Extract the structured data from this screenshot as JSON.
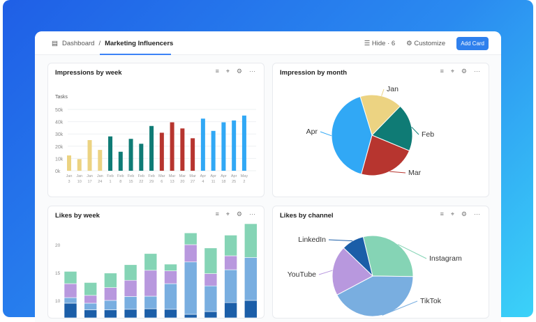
{
  "header": {
    "breadcrumb_root": "Dashboard",
    "breadcrumb_sep": "/",
    "breadcrumb_current": "Marketing Influencers",
    "hide_label": "Hide · 6",
    "customize_label": "Customize",
    "add_card_label": "Add Card"
  },
  "colors": {
    "accent": "#2f80ed",
    "jan": "#ecd382",
    "feb": "#0f7b75",
    "mar": "#b7352f",
    "apr": "#31a8f5",
    "linkedin": "#1b5ea8",
    "instagram": "#85d4b5",
    "tiktok": "#79aee0",
    "youtube": "#b898de"
  },
  "panels": {
    "impressions_week": "Impressions by week",
    "impression_month": "Impression by month",
    "likes_week": "Likes by week",
    "likes_channel": "Likes by channel"
  },
  "chart_data": [
    {
      "type": "bar",
      "title": "Impressions by week",
      "ylabel": "Tasks",
      "ylim": [
        0,
        50000
      ],
      "yticks": [
        "0k",
        "10k",
        "20k",
        "30k",
        "40k",
        "50k"
      ],
      "categories": [
        [
          "Jan",
          "3"
        ],
        [
          "Jan",
          "10"
        ],
        [
          "Jan",
          "17"
        ],
        [
          "Jan",
          "24"
        ],
        [
          "Feb",
          "1"
        ],
        [
          "Feb",
          "8"
        ],
        [
          "Feb",
          "15"
        ],
        [
          "Feb",
          "22"
        ],
        [
          "Feb",
          "29"
        ],
        [
          "Mar",
          "6"
        ],
        [
          "Mar",
          "13"
        ],
        [
          "Mar",
          "20"
        ],
        [
          "Mar",
          "27"
        ],
        [
          "Apr",
          "4"
        ],
        [
          "Apr",
          "11"
        ],
        [
          "Apr",
          "18"
        ],
        [
          "Apr",
          "25"
        ],
        [
          "May",
          "2"
        ]
      ],
      "values": [
        12500,
        9500,
        25000,
        17000,
        28000,
        15500,
        26000,
        22000,
        36500,
        31000,
        39500,
        34500,
        26500,
        42500,
        32500,
        39500,
        41000,
        45000
      ],
      "month_colors": [
        "jan",
        "jan",
        "jan",
        "jan",
        "feb",
        "feb",
        "feb",
        "feb",
        "feb",
        "mar",
        "mar",
        "mar",
        "mar",
        "apr",
        "apr",
        "apr",
        "apr",
        "apr"
      ],
      "grid": true
    },
    {
      "type": "pie",
      "title": "Impression by month",
      "labels": [
        "Jan",
        "Feb",
        "Mar",
        "Apr"
      ],
      "values": [
        17,
        19,
        23,
        41
      ]
    },
    {
      "type": "bar",
      "stacked": true,
      "title": "Likes by week",
      "yticks": [
        "10",
        "15",
        "20"
      ],
      "series": [
        {
          "color": "linkedin",
          "values": [
            9.5,
            8.3,
            8.3,
            8.4,
            8.5,
            8.4,
            7.5,
            8.0,
            9.6,
            10.0
          ]
        },
        {
          "color": "tiktok",
          "values": [
            1.0,
            1.2,
            1.7,
            2.3,
            2.25,
            4.6,
            9.4,
            4.6,
            5.9,
            7.7
          ]
        },
        {
          "color": "youtube",
          "values": [
            2.5,
            1.4,
            2.3,
            2.9,
            4.65,
            2.3,
            3.1,
            2.2,
            2.5,
            0
          ]
        },
        {
          "color": "instagram",
          "values": [
            2.2,
            2.3,
            2.6,
            2.8,
            3.0,
            1.2,
            2.1,
            4.6,
            3.7,
            6.05
          ]
        }
      ],
      "grid": true
    },
    {
      "type": "pie",
      "title": "Likes by channel",
      "labels": [
        "LinkedIn",
        "Instagram",
        "TikTok",
        "YouTube"
      ],
      "values": [
        9,
        29,
        42,
        20
      ]
    }
  ]
}
